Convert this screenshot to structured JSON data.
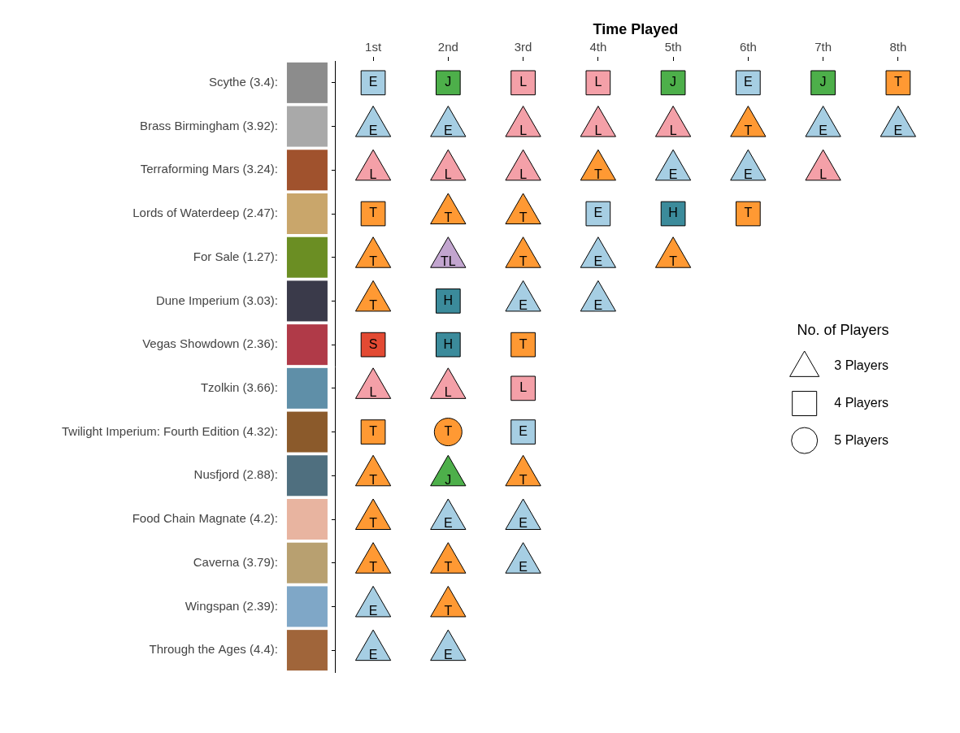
{
  "chart_data": {
    "type": "scatter",
    "x_label": "Time Played",
    "x_categories": [
      "1st",
      "2nd",
      "3rd",
      "4th",
      "5th",
      "6th",
      "7th",
      "8th"
    ],
    "y_categories": [
      "Scythe (3.4):",
      "Brass Birmingham (3.92):",
      "Terraforming Mars (3.24):",
      "Lords of Waterdeep (2.47):",
      "For Sale (1.27):",
      "Dune Imperium (3.03):",
      "Vegas Showdown (2.36):",
      "Tzolkin (3.66):",
      "Twilight Imperium: Fourth Edition (4.32):",
      "Nusfjord (2.88):",
      "Food Chain Magnate (4.2):",
      "Caverna (3.79):",
      "Wingspan (2.39):",
      "Through the Ages (4.4):"
    ],
    "grid": false,
    "legend": "right",
    "legend_title": "No. of Players",
    "player_counts": [
      {
        "value": 3,
        "label": "3 Players",
        "marker": "triangle"
      },
      {
        "value": 4,
        "label": "4 Players",
        "marker": "square"
      },
      {
        "value": 5,
        "label": "5 Players",
        "marker": "circle"
      }
    ],
    "series": [
      {
        "name": "E",
        "color": "#a6cee3",
        "values": [
          {
            "x": "1st",
            "y": "Scythe (3.4):",
            "players": 4
          },
          {
            "x": "6th",
            "y": "Scythe (3.4):",
            "players": 4
          },
          {
            "x": "1st",
            "y": "Brass Birmingham (3.92):",
            "players": 3
          },
          {
            "x": "2nd",
            "y": "Brass Birmingham (3.92):",
            "players": 3
          },
          {
            "x": "7th",
            "y": "Brass Birmingham (3.92):",
            "players": 3
          },
          {
            "x": "8th",
            "y": "Brass Birmingham (3.92):",
            "players": 3
          },
          {
            "x": "5th",
            "y": "Terraforming Mars (3.24):",
            "players": 3
          },
          {
            "x": "6th",
            "y": "Terraforming Mars (3.24):",
            "players": 3
          },
          {
            "x": "4th",
            "y": "Lords of Waterdeep (2.47):",
            "players": 4
          },
          {
            "x": "4th",
            "y": "For Sale (1.27):",
            "players": 3
          },
          {
            "x": "3rd",
            "y": "Dune Imperium (3.03):",
            "players": 3
          },
          {
            "x": "4th",
            "y": "Dune Imperium (3.03):",
            "players": 3
          },
          {
            "x": "3rd",
            "y": "Twilight Imperium: Fourth Edition (4.32):",
            "players": 4
          },
          {
            "x": "2nd",
            "y": "Food Chain Magnate (4.2):",
            "players": 3
          },
          {
            "x": "3rd",
            "y": "Food Chain Magnate (4.2):",
            "players": 3
          },
          {
            "x": "3rd",
            "y": "Caverna (3.79):",
            "players": 3
          },
          {
            "x": "1st",
            "y": "Wingspan (2.39):",
            "players": 3
          },
          {
            "x": "1st",
            "y": "Through the Ages (4.4):",
            "players": 3
          },
          {
            "x": "2nd",
            "y": "Through the Ages (4.4):",
            "players": 3
          }
        ]
      },
      {
        "name": "J",
        "color": "#4daf4a",
        "values": [
          {
            "x": "2nd",
            "y": "Scythe (3.4):",
            "players": 4
          },
          {
            "x": "5th",
            "y": "Scythe (3.4):",
            "players": 4
          },
          {
            "x": "7th",
            "y": "Scythe (3.4):",
            "players": 4
          },
          {
            "x": "2nd",
            "y": "Nusfjord (2.88):",
            "players": 3
          }
        ]
      },
      {
        "name": "L",
        "color": "#f4a0a8",
        "values": [
          {
            "x": "3rd",
            "y": "Scythe (3.4):",
            "players": 4
          },
          {
            "x": "4th",
            "y": "Scythe (3.4):",
            "players": 4
          },
          {
            "x": "3rd",
            "y": "Brass Birmingham (3.92):",
            "players": 3
          },
          {
            "x": "4th",
            "y": "Brass Birmingham (3.92):",
            "players": 3
          },
          {
            "x": "5th",
            "y": "Brass Birmingham (3.92):",
            "players": 3
          },
          {
            "x": "1st",
            "y": "Terraforming Mars (3.24):",
            "players": 3
          },
          {
            "x": "2nd",
            "y": "Terraforming Mars (3.24):",
            "players": 3
          },
          {
            "x": "3rd",
            "y": "Terraforming Mars (3.24):",
            "players": 3
          },
          {
            "x": "7th",
            "y": "Terraforming Mars (3.24):",
            "players": 3
          },
          {
            "x": "1st",
            "y": "Tzolkin (3.66):",
            "players": 3
          },
          {
            "x": "2nd",
            "y": "Tzolkin (3.66):",
            "players": 3
          },
          {
            "x": "3rd",
            "y": "Tzolkin (3.66):",
            "players": 4
          }
        ]
      },
      {
        "name": "T",
        "color": "#ff9933",
        "values": [
          {
            "x": "8th",
            "y": "Scythe (3.4):",
            "players": 4
          },
          {
            "x": "6th",
            "y": "Brass Birmingham (3.92):",
            "players": 3
          },
          {
            "x": "4th",
            "y": "Terraforming Mars (3.24):",
            "players": 3
          },
          {
            "x": "1st",
            "y": "Lords of Waterdeep (2.47):",
            "players": 4
          },
          {
            "x": "2nd",
            "y": "Lords of Waterdeep (2.47):",
            "players": 3
          },
          {
            "x": "3rd",
            "y": "Lords of Waterdeep (2.47):",
            "players": 3
          },
          {
            "x": "6th",
            "y": "Lords of Waterdeep (2.47):",
            "players": 4
          },
          {
            "x": "1st",
            "y": "For Sale (1.27):",
            "players": 3
          },
          {
            "x": "3rd",
            "y": "For Sale (1.27):",
            "players": 3
          },
          {
            "x": "5th",
            "y": "For Sale (1.27):",
            "players": 3
          },
          {
            "x": "1st",
            "y": "Dune Imperium (3.03):",
            "players": 3
          },
          {
            "x": "3rd",
            "y": "Vegas Showdown (2.36):",
            "players": 4
          },
          {
            "x": "1st",
            "y": "Twilight Imperium: Fourth Edition (4.32):",
            "players": 4
          },
          {
            "x": "2nd",
            "y": "Twilight Imperium: Fourth Edition (4.32):",
            "players": 5
          },
          {
            "x": "1st",
            "y": "Nusfjord (2.88):",
            "players": 3
          },
          {
            "x": "3rd",
            "y": "Nusfjord (2.88):",
            "players": 3
          },
          {
            "x": "1st",
            "y": "Food Chain Magnate (4.2):",
            "players": 3
          },
          {
            "x": "1st",
            "y": "Caverna (3.79):",
            "players": 3
          },
          {
            "x": "2nd",
            "y": "Caverna (3.79):",
            "players": 3
          },
          {
            "x": "2nd",
            "y": "Wingspan (2.39):",
            "players": 3
          }
        ]
      },
      {
        "name": "H",
        "color": "#3b8b9b",
        "values": [
          {
            "x": "5th",
            "y": "Lords of Waterdeep (2.47):",
            "players": 4
          },
          {
            "x": "2nd",
            "y": "Dune Imperium (3.03):",
            "players": 4
          },
          {
            "x": "2nd",
            "y": "Vegas Showdown (2.36):",
            "players": 4
          }
        ]
      },
      {
        "name": "S",
        "color": "#e34a33",
        "values": [
          {
            "x": "1st",
            "y": "Vegas Showdown (2.36):",
            "players": 4
          }
        ]
      },
      {
        "name": "TL",
        "color": "#c2a5cf",
        "values": [
          {
            "x": "2nd",
            "y": "For Sale (1.27):",
            "players": 3
          }
        ]
      }
    ]
  }
}
